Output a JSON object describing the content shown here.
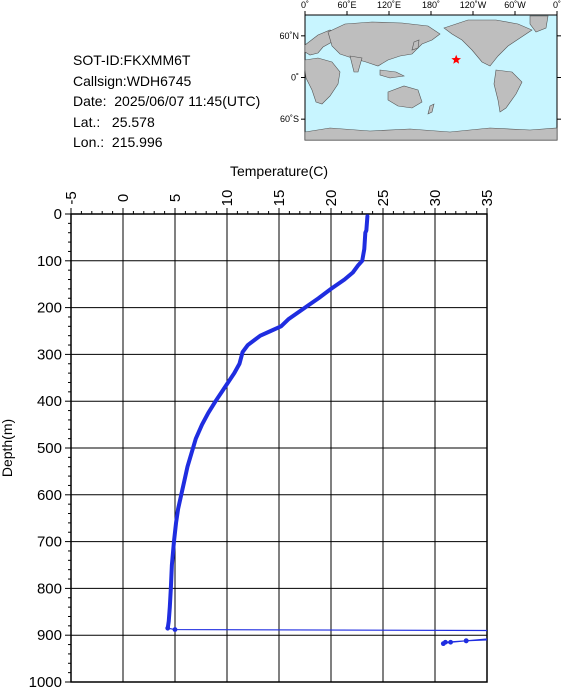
{
  "info": {
    "sot_id": "SOT-ID:FKXMM6T",
    "callsign": "Callsign:WDH6745",
    "date": "Date:  2025/06/07 11:45(UTC)",
    "lat": "Lat.:   25.578",
    "lon": "Lon.:  215.996"
  },
  "map": {
    "top_labels": [
      "0˚",
      "60˚E",
      "120˚E",
      "180˚",
      "120˚W",
      "60˚W",
      "0˚"
    ],
    "lat_labels": [
      "60˚N",
      "0˚",
      "60˚S"
    ],
    "marker_lon": 215.996,
    "marker_lat": 25.578,
    "ocean_color": "#c8f5ff",
    "land_color": "#bebebe",
    "marker_color": "#ff0000"
  },
  "chart_data": {
    "type": "line",
    "xlabel": "Temperature(C)",
    "ylabel": "Depth(m)",
    "xlim": [
      -5,
      35
    ],
    "ylim": [
      1000,
      0
    ],
    "x_ticks": [
      -5,
      0,
      5,
      10,
      15,
      20,
      25,
      30,
      35
    ],
    "y_ticks": [
      0,
      100,
      200,
      300,
      400,
      500,
      600,
      700,
      800,
      900,
      1000
    ],
    "x_tick_labels": [
      "-5",
      "0",
      "5",
      "10",
      "15",
      "20",
      "25",
      "30",
      "35"
    ],
    "y_tick_labels": [
      "0",
      "100",
      "200",
      "300",
      "400",
      "500",
      "600",
      "700",
      "800",
      "900",
      "1000"
    ],
    "grid": true,
    "line_color": "#1f2de0",
    "series": [
      {
        "temperature": [
          23.5,
          23.4,
          23.3,
          23.2,
          23.0,
          22.6,
          22.1,
          21.3,
          20.0,
          18.8,
          17.5,
          15.9,
          15.2,
          14.2,
          13.2,
          12.0,
          11.5,
          11.2,
          10.7,
          10.1,
          9.5,
          8.9,
          8.2,
          7.6,
          7.0,
          6.6,
          6.2,
          5.9,
          5.6,
          5.3,
          5.1,
          4.9,
          4.7,
          4.6,
          4.5,
          4.4,
          4.3
        ],
        "depth": [
          5,
          35,
          40,
          75,
          100,
          110,
          125,
          140,
          160,
          180,
          200,
          225,
          240,
          250,
          260,
          280,
          295,
          320,
          340,
          360,
          380,
          400,
          425,
          450,
          480,
          510,
          540,
          570,
          600,
          630,
          660,
          700,
          750,
          800,
          840,
          870,
          885
        ]
      }
    ],
    "spikes": [
      {
        "temperature": [
          4.3,
          5.0,
          35.5
        ],
        "depth": [
          885,
          888,
          890
        ]
      },
      {
        "temperature": [
          35.5,
          33.0,
          31.0,
          30.8,
          31.5,
          33.0,
          35.5
        ],
        "depth": [
          908,
          912,
          915,
          918,
          915,
          912,
          910
        ]
      }
    ]
  }
}
